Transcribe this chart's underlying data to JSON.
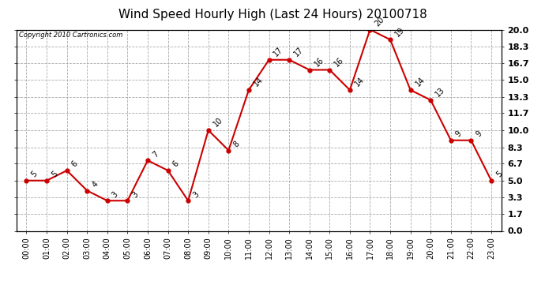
{
  "title": "Wind Speed Hourly High (Last 24 Hours) 20100718",
  "copyright": "Copyright 2010 Cartronics.com",
  "hours": [
    "00:00",
    "01:00",
    "02:00",
    "03:00",
    "04:00",
    "05:00",
    "06:00",
    "07:00",
    "08:00",
    "09:00",
    "10:00",
    "11:00",
    "12:00",
    "13:00",
    "14:00",
    "15:00",
    "16:00",
    "17:00",
    "18:00",
    "19:00",
    "20:00",
    "21:00",
    "22:00",
    "23:00"
  ],
  "values": [
    5,
    5,
    6,
    4,
    3,
    3,
    7,
    6,
    3,
    10,
    8,
    14,
    17,
    17,
    16,
    16,
    14,
    20,
    19,
    14,
    13,
    9,
    9,
    5
  ],
  "line_color": "#cc0000",
  "marker_color": "#cc0000",
  "bg_color": "#ffffff",
  "grid_color": "#aaaaaa",
  "title_fontsize": 11,
  "ylim": [
    0.0,
    20.0
  ],
  "yticks": [
    0.0,
    1.7,
    3.3,
    5.0,
    6.7,
    8.3,
    10.0,
    11.7,
    13.3,
    15.0,
    16.7,
    18.3,
    20.0
  ],
  "ytick_labels": [
    "0.0",
    "1.7",
    "3.3",
    "5.0",
    "6.7",
    "8.3",
    "10.0",
    "11.7",
    "13.3",
    "15.0",
    "16.7",
    "18.3",
    "20.0"
  ]
}
